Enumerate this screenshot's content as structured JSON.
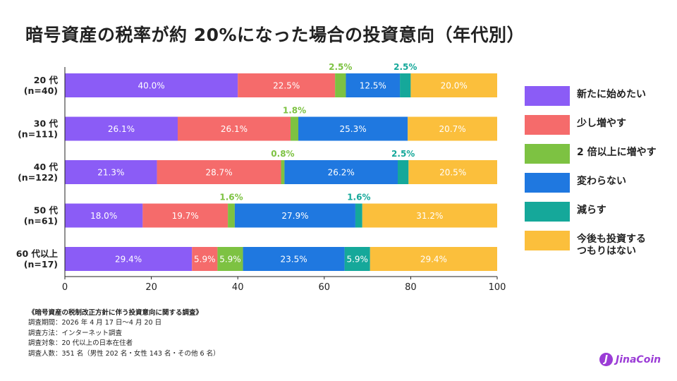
{
  "title": "暗号資産の税率が約 20%になった場合の投資意向（年代別）",
  "chart_data": {
    "type": "bar",
    "orientation": "horizontal",
    "stacked": true,
    "categories": [
      "20 代\n(n=40)",
      "30 代\n(n=111)",
      "40 代\n(n=122)",
      "50 代\n(n=61)",
      "60 代以上\n(n=17)"
    ],
    "series": [
      {
        "name": "新たに始めたい",
        "color": "#8b5cf6",
        "values": [
          40.0,
          26.1,
          21.3,
          18.0,
          29.4
        ]
      },
      {
        "name": "少し増やす",
        "color": "#f56b6b",
        "values": [
          22.5,
          26.1,
          28.7,
          19.7,
          5.9
        ]
      },
      {
        "name": "2 倍以上に増やす",
        "color": "#7dc242",
        "values": [
          2.5,
          1.8,
          0.8,
          1.6,
          5.9
        ]
      },
      {
        "name": "変わらない",
        "color": "#1f78e0",
        "values": [
          12.5,
          25.3,
          26.2,
          27.9,
          23.5
        ]
      },
      {
        "name": "減らす",
        "color": "#15a89a",
        "values": [
          2.5,
          0.0,
          2.5,
          1.6,
          5.9
        ]
      },
      {
        "name": "今後も投資する\nつもりはない",
        "color": "#fbbf3c",
        "values": [
          20.0,
          20.7,
          20.5,
          31.2,
          29.4
        ]
      }
    ],
    "xlim": [
      0,
      100
    ],
    "xticks": [
      0,
      20,
      40,
      60,
      80,
      100
    ],
    "xlabel": "",
    "ylabel": "",
    "grid": false,
    "legend_position": "right",
    "inside_labels": [
      [
        "40.0%",
        "22.5%",
        "",
        "12.5%",
        "",
        "20.0%"
      ],
      [
        "26.1%",
        "26.1%",
        "",
        "25.3%",
        "",
        "20.7%"
      ],
      [
        "21.3%",
        "28.7%",
        "",
        "26.2%",
        "",
        "20.5%"
      ],
      [
        "18.0%",
        "19.7%",
        "",
        "27.9%",
        "",
        "31.2%"
      ],
      [
        "29.4%",
        "5.9%",
        "5.9%",
        "23.5%",
        "5.9%",
        "29.4%"
      ]
    ],
    "above_labels": [
      [
        {
          "series": 2,
          "text": "2.5%"
        },
        {
          "series": 4,
          "text": "2.5%"
        }
      ],
      [
        {
          "series": 2,
          "text": "1.8%"
        }
      ],
      [
        {
          "series": 2,
          "text": "0.8%"
        },
        {
          "series": 4,
          "text": "2.5%"
        }
      ],
      [
        {
          "series": 2,
          "text": "1.6%"
        },
        {
          "series": 4,
          "text": "1.6%"
        }
      ],
      []
    ]
  },
  "footnote": {
    "title": "《暗号資産の税制改正方針に伴う投資意向に関する調査》",
    "lines": [
      "調査期間：2026 年 4 月 17 日〜4 月 20 日",
      "調査方法：インターネット調査",
      "調査対象：20 代以上の日本在住者",
      "調査人数：351 名（男性 202 名・女性 143 名・その他 6 名）"
    ]
  },
  "logo": {
    "mark": "J",
    "text": "JinaCoin"
  }
}
